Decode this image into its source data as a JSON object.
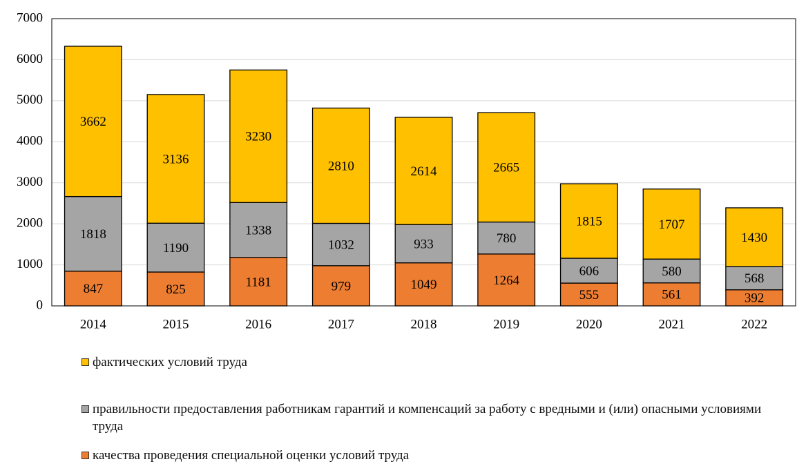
{
  "chart_data": {
    "type": "stacked_bar",
    "categories": [
      "2014",
      "2015",
      "2016",
      "2017",
      "2018",
      "2019",
      "2020",
      "2021",
      "2022"
    ],
    "series": [
      {
        "name": "качества проведения специальной оценки условий труда",
        "color": "#ed7d31",
        "values": [
          847,
          825,
          1181,
          979,
          1049,
          1264,
          555,
          561,
          392
        ]
      },
      {
        "name": "правильности предоставления работникам гарантий и компенсаций за работу с вредными и (или) опасными условиями труда",
        "color": "#a5a5a5",
        "values": [
          1818,
          1190,
          1338,
          1032,
          933,
          780,
          606,
          580,
          568
        ]
      },
      {
        "name": "фактических условий труда",
        "color": "#ffc000",
        "values": [
          3662,
          3136,
          3230,
          2810,
          2614,
          2665,
          1815,
          1707,
          1430
        ]
      }
    ],
    "ylim": [
      0,
      7000
    ],
    "yticks": [
      0,
      1000,
      2000,
      3000,
      4000,
      5000,
      6000,
      7000
    ],
    "grid": true
  }
}
